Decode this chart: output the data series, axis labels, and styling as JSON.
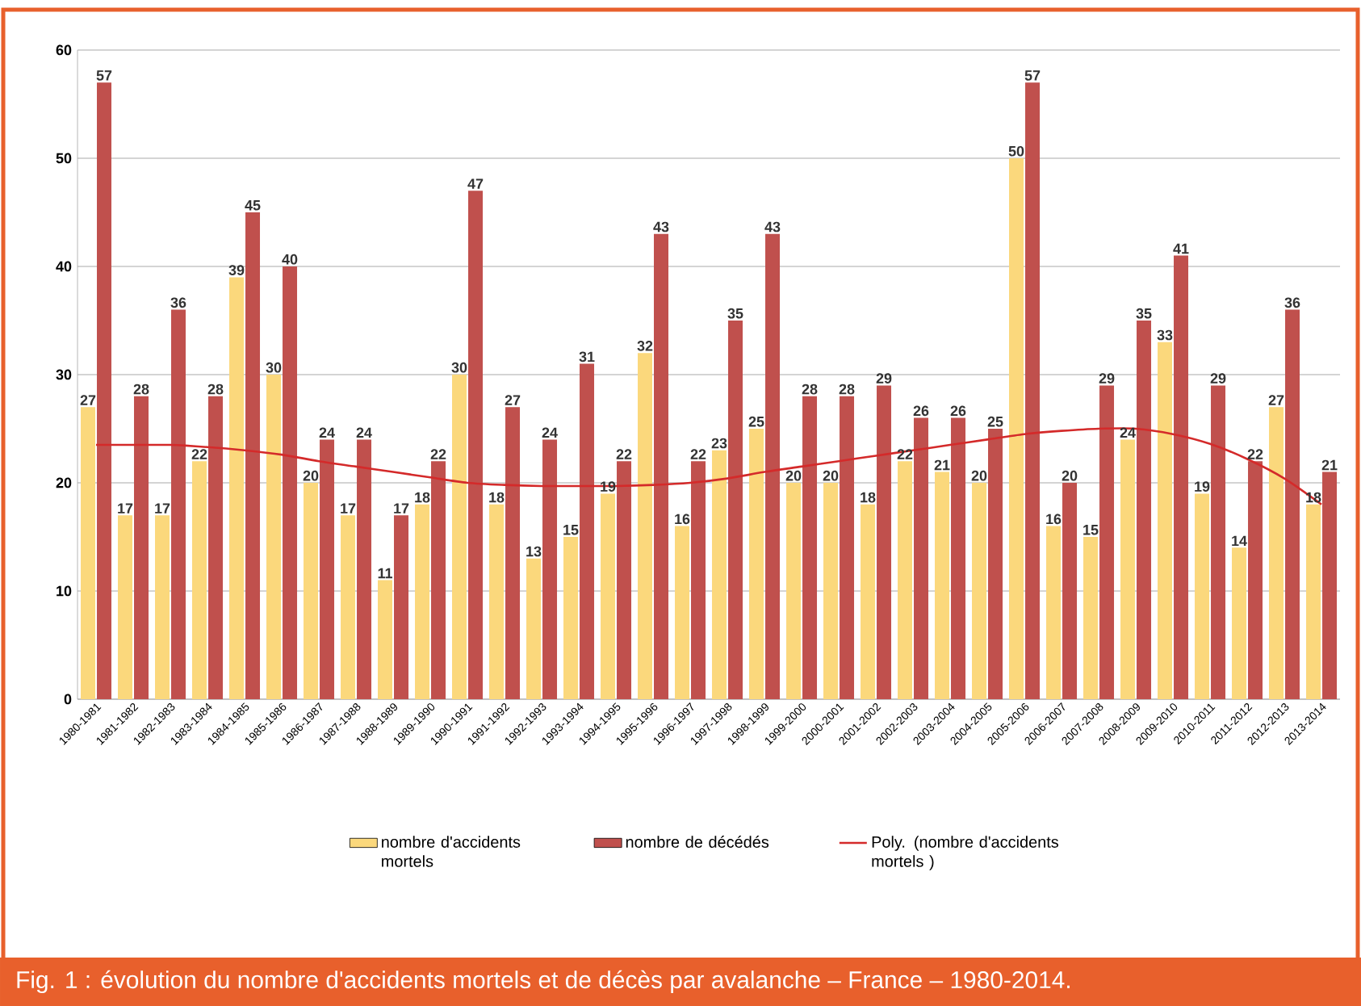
{
  "chart_data": {
    "type": "bar",
    "title": "Fig. 1 : évolution du nombre d'accidents mortels et de décès par avalanche – France – 1980-2014.",
    "categories": [
      "1980-1981",
      "1981-1982",
      "1982-1983",
      "1983-1984",
      "1984-1985",
      "1985-1986",
      "1986-1987",
      "1987-1988",
      "1988-1989",
      "1989-1990",
      "1990-1991",
      "1991-1992",
      "1992-1993",
      "1993-1994",
      "1994-1995",
      "1995-1996",
      "1996-1997",
      "1997-1998",
      "1998-1999",
      "1999-2000",
      "2000-2001",
      "2001-2002",
      "2002-2003",
      "2003-2004",
      "2004-2005",
      "2005-2006",
      "2006-2007",
      "2007-2008",
      "2008-2009",
      "2009-2010",
      "2010-2011",
      "2011-2012",
      "2012-2013",
      "2013-2014"
    ],
    "series": [
      {
        "name": "nombre d'accidents mortels",
        "color": "#fbd87c",
        "values": [
          27,
          17,
          17,
          22,
          39,
          30,
          20,
          17,
          11,
          18,
          30,
          18,
          13,
          15,
          19,
          32,
          16,
          23,
          25,
          20,
          20,
          18,
          22,
          21,
          20,
          50,
          16,
          15,
          24,
          33,
          19,
          14,
          27,
          18
        ],
        "value_labels": [
          "27",
          "17",
          "17",
          "22",
          "39",
          "30",
          "20",
          "17",
          "11",
          "18",
          "30",
          "18",
          "13",
          "15",
          "19",
          "32",
          "16",
          "23",
          "25",
          "20",
          "20",
          "18",
          "22",
          "21",
          "20",
          "50",
          "16",
          "15",
          "24",
          "33",
          "19",
          "14",
          "27",
          "18"
        ]
      },
      {
        "name": "nombre de décédés",
        "color": "#c0504d",
        "values": [
          57,
          28,
          36,
          28,
          45,
          40,
          24,
          24,
          17,
          22,
          47,
          27,
          24,
          31,
          22,
          43,
          22,
          35,
          43,
          28,
          28,
          29,
          26,
          26,
          25,
          57,
          20,
          29,
          35,
          41,
          29,
          22,
          36,
          21
        ],
        "value_labels": [
          "57",
          "28",
          "36",
          "28",
          "45",
          "40",
          "24",
          "24",
          "17",
          "22",
          "47",
          "27",
          "24",
          "31",
          "22",
          "43",
          "22",
          "35",
          "43",
          "28",
          "28",
          "29",
          "26",
          "26",
          "25",
          "57",
          "20",
          "29",
          "35",
          "41",
          "29",
          "22",
          "36",
          "21"
        ]
      },
      {
        "name": "Poly. (nombre d'accidents mortels )",
        "type": "line",
        "color": "#d42a2a",
        "values": [
          23.5,
          23.5,
          23.5,
          23.3,
          23,
          22.6,
          22,
          21.5,
          21,
          20.5,
          20,
          19.8,
          19.7,
          19.7,
          19.7,
          19.8,
          20,
          20.4,
          21,
          21.5,
          22,
          22.5,
          23,
          23.5,
          24,
          24.5,
          24.8,
          25,
          25,
          24.5,
          23.6,
          22.2,
          20.4,
          18
        ]
      }
    ],
    "ylim": [
      0,
      60
    ],
    "yticks": [
      0,
      10,
      20,
      30,
      40,
      50,
      60
    ],
    "grid": "y",
    "legend": "bottom"
  }
}
